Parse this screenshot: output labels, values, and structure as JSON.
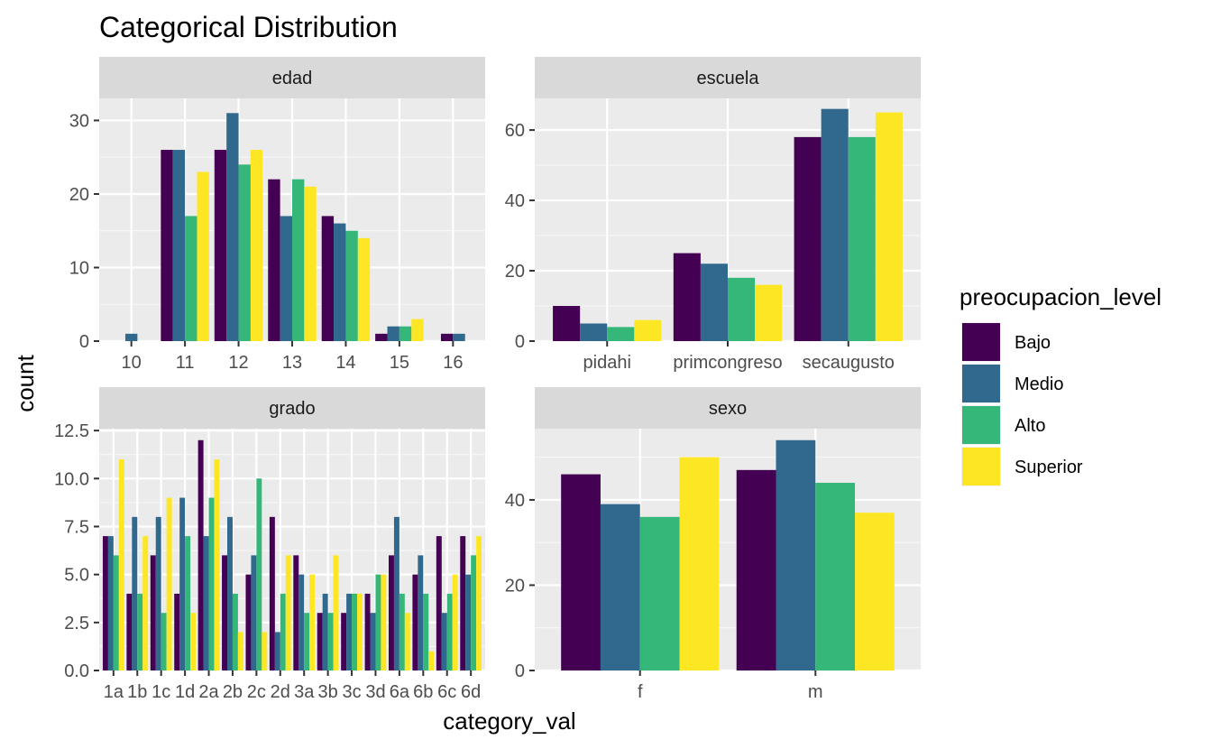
{
  "chart_data": {
    "type": "bar",
    "title": "Categorical Distribution",
    "xlabel": "category_val",
    "ylabel": "count",
    "legend": {
      "title": "preocupacion_level",
      "position": "right",
      "entries": [
        "Bajo",
        "Medio",
        "Alto",
        "Superior"
      ]
    },
    "colors": {
      "Bajo": "#440154",
      "Medio": "#31688E",
      "Alto": "#35B779",
      "Superior": "#FDE725"
    },
    "grid": true,
    "panels": [
      {
        "strip": "edad",
        "categories": [
          "10",
          "11",
          "12",
          "13",
          "14",
          "15",
          "16"
        ],
        "ylim": [
          0,
          33
        ],
        "yticks": [
          0,
          10,
          20,
          30
        ],
        "groups": [
          [
            {
              "level": "Medio",
              "value": 1
            }
          ],
          [
            {
              "level": "Bajo",
              "value": 26
            },
            {
              "level": "Medio",
              "value": 26
            },
            {
              "level": "Alto",
              "value": 17
            },
            {
              "level": "Superior",
              "value": 23
            }
          ],
          [
            {
              "level": "Bajo",
              "value": 26
            },
            {
              "level": "Medio",
              "value": 31
            },
            {
              "level": "Alto",
              "value": 24
            },
            {
              "level": "Superior",
              "value": 26
            }
          ],
          [
            {
              "level": "Bajo",
              "value": 22
            },
            {
              "level": "Medio",
              "value": 17
            },
            {
              "level": "Alto",
              "value": 22
            },
            {
              "level": "Superior",
              "value": 21
            }
          ],
          [
            {
              "level": "Bajo",
              "value": 17
            },
            {
              "level": "Medio",
              "value": 16
            },
            {
              "level": "Alto",
              "value": 15
            },
            {
              "level": "Superior",
              "value": 14
            }
          ],
          [
            {
              "level": "Bajo",
              "value": 1
            },
            {
              "level": "Medio",
              "value": 2
            },
            {
              "level": "Alto",
              "value": 2
            },
            {
              "level": "Superior",
              "value": 3
            }
          ],
          [
            {
              "level": "Bajo",
              "value": 1
            },
            {
              "level": "Medio",
              "value": 1
            }
          ]
        ]
      },
      {
        "strip": "escuela",
        "categories": [
          "pidahi",
          "primcongreso",
          "secaugusto"
        ],
        "ylim": [
          0,
          69
        ],
        "yticks": [
          0,
          20,
          40,
          60
        ],
        "groups": [
          [
            {
              "level": "Bajo",
              "value": 10
            },
            {
              "level": "Medio",
              "value": 5
            },
            {
              "level": "Alto",
              "value": 4
            },
            {
              "level": "Superior",
              "value": 6
            }
          ],
          [
            {
              "level": "Bajo",
              "value": 25
            },
            {
              "level": "Medio",
              "value": 22
            },
            {
              "level": "Alto",
              "value": 18
            },
            {
              "level": "Superior",
              "value": 16
            }
          ],
          [
            {
              "level": "Bajo",
              "value": 58
            },
            {
              "level": "Medio",
              "value": 66
            },
            {
              "level": "Alto",
              "value": 58
            },
            {
              "level": "Superior",
              "value": 65
            }
          ]
        ]
      },
      {
        "strip": "grado",
        "categories": [
          "1a",
          "1b",
          "1c",
          "1d",
          "2a",
          "2b",
          "2c",
          "2d",
          "3a",
          "3b",
          "3c",
          "3d",
          "6a",
          "6b",
          "6c",
          "6d"
        ],
        "ylim": [
          0,
          12.6
        ],
        "yticks": [
          0.0,
          2.5,
          5.0,
          7.5,
          10.0,
          12.5
        ],
        "ytick_labels": [
          "0.0",
          "2.5",
          "5.0",
          "7.5",
          "10.0",
          "12.5"
        ],
        "groups": [
          [
            {
              "level": "Bajo",
              "value": 7
            },
            {
              "level": "Medio",
              "value": 7
            },
            {
              "level": "Alto",
              "value": 6
            },
            {
              "level": "Superior",
              "value": 11
            }
          ],
          [
            {
              "level": "Bajo",
              "value": 4
            },
            {
              "level": "Medio",
              "value": 8
            },
            {
              "level": "Alto",
              "value": 4
            },
            {
              "level": "Superior",
              "value": 7
            }
          ],
          [
            {
              "level": "Bajo",
              "value": 6
            },
            {
              "level": "Medio",
              "value": 8
            },
            {
              "level": "Alto",
              "value": 3
            },
            {
              "level": "Superior",
              "value": 9
            }
          ],
          [
            {
              "level": "Bajo",
              "value": 4
            },
            {
              "level": "Medio",
              "value": 9
            },
            {
              "level": "Alto",
              "value": 7
            },
            {
              "level": "Superior",
              "value": 3
            }
          ],
          [
            {
              "level": "Bajo",
              "value": 12
            },
            {
              "level": "Medio",
              "value": 7
            },
            {
              "level": "Alto",
              "value": 9
            },
            {
              "level": "Superior",
              "value": 11
            }
          ],
          [
            {
              "level": "Bajo",
              "value": 6
            },
            {
              "level": "Medio",
              "value": 8
            },
            {
              "level": "Alto",
              "value": 4
            },
            {
              "level": "Superior",
              "value": 2
            }
          ],
          [
            {
              "level": "Bajo",
              "value": 5
            },
            {
              "level": "Medio",
              "value": 6
            },
            {
              "level": "Alto",
              "value": 10
            },
            {
              "level": "Superior",
              "value": 2
            }
          ],
          [
            {
              "level": "Bajo",
              "value": 8
            },
            {
              "level": "Medio",
              "value": 2
            },
            {
              "level": "Alto",
              "value": 4
            },
            {
              "level": "Superior",
              "value": 6
            }
          ],
          [
            {
              "level": "Bajo",
              "value": 6
            },
            {
              "level": "Medio",
              "value": 5
            },
            {
              "level": "Alto",
              "value": 3
            },
            {
              "level": "Superior",
              "value": 5
            }
          ],
          [
            {
              "level": "Bajo",
              "value": 3
            },
            {
              "level": "Medio",
              "value": 4
            },
            {
              "level": "Alto",
              "value": 3
            },
            {
              "level": "Superior",
              "value": 6
            }
          ],
          [
            {
              "level": "Bajo",
              "value": 3
            },
            {
              "level": "Medio",
              "value": 4
            },
            {
              "level": "Alto",
              "value": 4
            },
            {
              "level": "Superior",
              "value": 4
            }
          ],
          [
            {
              "level": "Bajo",
              "value": 4
            },
            {
              "level": "Medio",
              "value": 3
            },
            {
              "level": "Alto",
              "value": 5
            },
            {
              "level": "Superior",
              "value": 5
            }
          ],
          [
            {
              "level": "Bajo",
              "value": 6
            },
            {
              "level": "Medio",
              "value": 8
            },
            {
              "level": "Alto",
              "value": 4
            },
            {
              "level": "Superior",
              "value": 3
            }
          ],
          [
            {
              "level": "Bajo",
              "value": 5
            },
            {
              "level": "Medio",
              "value": 6
            },
            {
              "level": "Alto",
              "value": 4
            },
            {
              "level": "Superior",
              "value": 1
            }
          ],
          [
            {
              "level": "Bajo",
              "value": 7
            },
            {
              "level": "Medio",
              "value": 3
            },
            {
              "level": "Alto",
              "value": 4
            },
            {
              "level": "Superior",
              "value": 5
            }
          ],
          [
            {
              "level": "Bajo",
              "value": 7
            },
            {
              "level": "Medio",
              "value": 5
            },
            {
              "level": "Alto",
              "value": 6
            },
            {
              "level": "Superior",
              "value": 7
            }
          ]
        ]
      },
      {
        "strip": "sexo",
        "categories": [
          "f",
          "m"
        ],
        "ylim": [
          0,
          56.7
        ],
        "yticks": [
          0,
          20,
          40
        ],
        "groups": [
          [
            {
              "level": "Bajo",
              "value": 46
            },
            {
              "level": "Medio",
              "value": 39
            },
            {
              "level": "Alto",
              "value": 36
            },
            {
              "level": "Superior",
              "value": 50
            }
          ],
          [
            {
              "level": "Bajo",
              "value": 47
            },
            {
              "level": "Medio",
              "value": 54
            },
            {
              "level": "Alto",
              "value": 44
            },
            {
              "level": "Superior",
              "value": 37
            }
          ]
        ]
      }
    ]
  }
}
